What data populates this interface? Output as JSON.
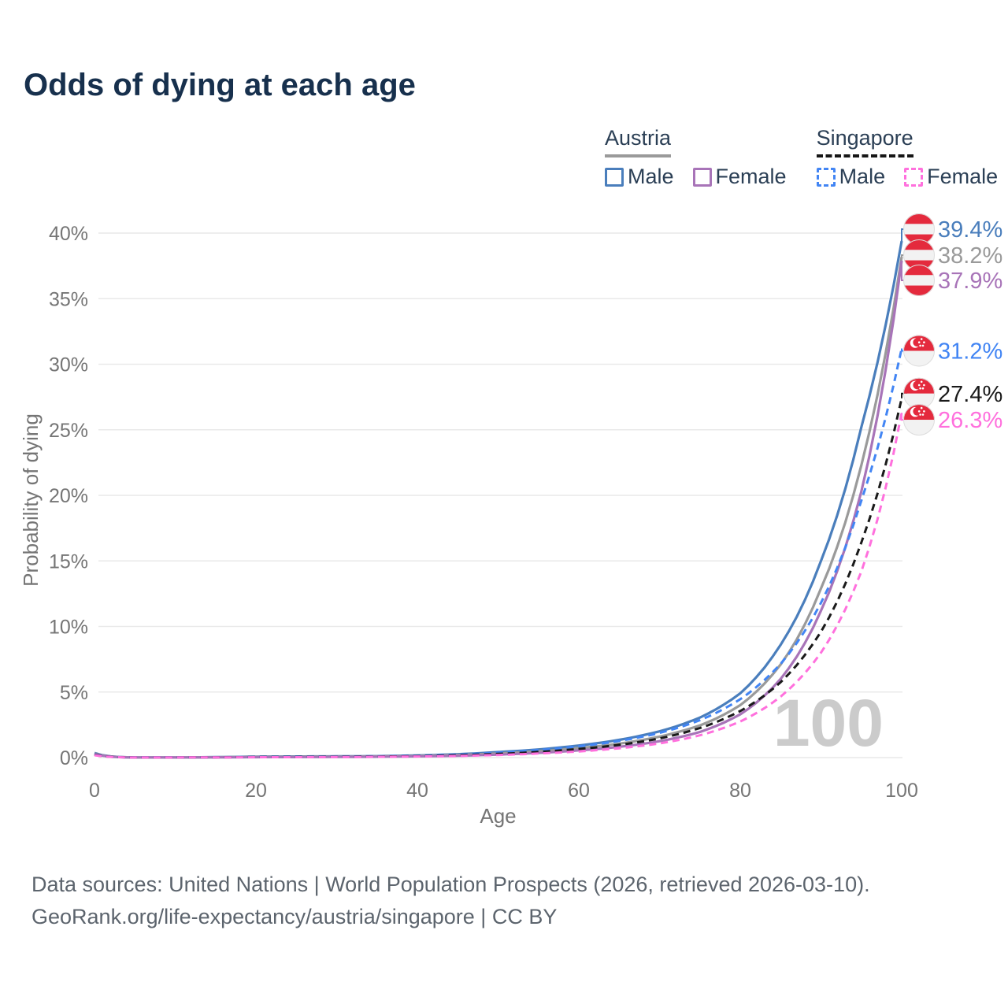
{
  "title": "Odds of dying at each age",
  "legend": {
    "groups": [
      {
        "name": "Austria",
        "line_style": "solid",
        "underline_color": "#9a9a9a",
        "items": [
          {
            "label": "Male",
            "color": "#4a7ebc",
            "dashed": false
          },
          {
            "label": "Female",
            "color": "#a874b8",
            "dashed": false
          }
        ]
      },
      {
        "name": "Singapore",
        "line_style": "dashed",
        "underline_color": "#161616",
        "items": [
          {
            "label": "Male",
            "color": "#4285f4",
            "dashed": true
          },
          {
            "label": "Female",
            "color": "#ff70dd",
            "dashed": true
          }
        ]
      }
    ]
  },
  "chart_data": {
    "type": "line",
    "title": "Odds of dying at each age",
    "xlabel": "Age",
    "ylabel": "Probability of dying",
    "xlim": [
      0,
      100
    ],
    "ylim": [
      0,
      40
    ],
    "x_ticks": [
      0,
      20,
      40,
      60,
      80,
      100
    ],
    "y_ticks": [
      0,
      5,
      10,
      15,
      20,
      25,
      30,
      35,
      40
    ],
    "y_tick_format": "percent",
    "grid": "horizontal-only",
    "legend_position": "top-right",
    "hover_age_watermark": "100",
    "x_ages": [
      0,
      5,
      10,
      15,
      20,
      25,
      30,
      35,
      40,
      45,
      50,
      55,
      60,
      65,
      70,
      75,
      80,
      85,
      90,
      95,
      100
    ],
    "series": [
      {
        "name": "Austria Male",
        "country": "Austria",
        "sex": "Male",
        "color": "#4a7ebc",
        "dashed": false,
        "flag": "austria",
        "end_label": "39.4%",
        "label_dy": -15,
        "values": [
          0.35,
          0.012,
          0.012,
          0.035,
          0.075,
          0.085,
          0.095,
          0.11,
          0.16,
          0.26,
          0.42,
          0.62,
          0.92,
          1.35,
          2.0,
          3.05,
          4.9,
          8.6,
          15.0,
          25.2,
          39.4
        ]
      },
      {
        "name": "Austria Both sexes",
        "country": "Austria",
        "sex": "Both",
        "color": "#9a9a9a",
        "dashed": false,
        "flag": "austria",
        "end_label": "38.2%",
        "label_dy": -2,
        "values": [
          0.31,
          0.011,
          0.01,
          0.027,
          0.055,
          0.062,
          0.072,
          0.088,
          0.125,
          0.2,
          0.32,
          0.48,
          0.72,
          1.06,
          1.6,
          2.45,
          4.0,
          7.1,
          12.9,
          22.3,
          38.2
        ]
      },
      {
        "name": "Austria Female",
        "country": "Austria",
        "sex": "Female",
        "color": "#a874b8",
        "dashed": false,
        "flag": "austria",
        "end_label": "37.9%",
        "label_dy": 25,
        "values": [
          0.28,
          0.01,
          0.009,
          0.02,
          0.033,
          0.038,
          0.048,
          0.065,
          0.095,
          0.145,
          0.23,
          0.36,
          0.55,
          0.82,
          1.25,
          1.95,
          3.3,
          6.0,
          11.2,
          20.3,
          37.9
        ]
      },
      {
        "name": "Singapore Male",
        "country": "Singapore",
        "sex": "Male",
        "color": "#4285f4",
        "dashed": true,
        "flag": "singapore",
        "end_label": "31.2%",
        "label_dy": 3,
        "values": [
          0.24,
          0.01,
          0.01,
          0.025,
          0.055,
          0.065,
          0.08,
          0.1,
          0.145,
          0.23,
          0.37,
          0.57,
          0.86,
          1.27,
          1.88,
          2.85,
          4.45,
          7.15,
          11.8,
          19.6,
          31.2
        ]
      },
      {
        "name": "Singapore Both sexes",
        "country": "Singapore",
        "sex": "Both",
        "color": "#1a1a1a",
        "dashed": true,
        "flag": "singapore",
        "end_label": "27.4%",
        "label_dy": -6,
        "values": [
          0.21,
          0.009,
          0.009,
          0.02,
          0.042,
          0.05,
          0.062,
          0.08,
          0.112,
          0.175,
          0.28,
          0.43,
          0.66,
          0.97,
          1.46,
          2.25,
          3.55,
          5.75,
          9.6,
          16.4,
          27.4
        ]
      },
      {
        "name": "Singapore Female",
        "country": "Singapore",
        "sex": "Female",
        "color": "#ff70dd",
        "dashed": true,
        "flag": "singapore",
        "end_label": "26.3%",
        "label_dy": 9,
        "values": [
          0.18,
          0.008,
          0.008,
          0.015,
          0.028,
          0.033,
          0.042,
          0.058,
          0.082,
          0.125,
          0.2,
          0.31,
          0.47,
          0.71,
          1.08,
          1.7,
          2.75,
          4.65,
          8.0,
          14.2,
          26.3
        ]
      }
    ]
  },
  "flag_colors": {
    "red": "#e42a3d",
    "white": "#f2f2f2"
  },
  "footer": {
    "line1": "Data sources: United Nations | World Population Prospects (2026, retrieved 2026-03-10).",
    "line2": "GeoRank.org/life-expectancy/austria/singapore | CC BY"
  }
}
